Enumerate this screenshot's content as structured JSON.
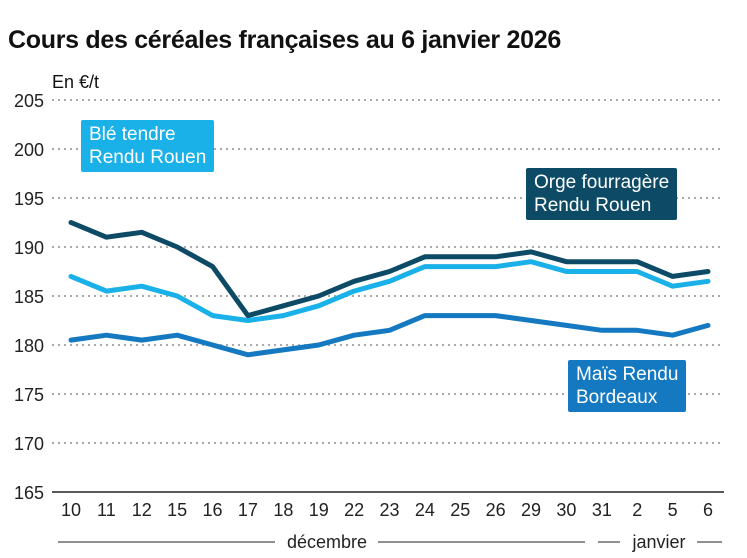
{
  "chart_data": {
    "type": "line",
    "title": "Cours des céréales françaises au 6 janvier 2026",
    "ylabel": "En €/t",
    "ylim": [
      165,
      205
    ],
    "yticks": [
      165,
      170,
      175,
      180,
      185,
      190,
      195,
      200,
      205
    ],
    "grid": true,
    "categories": [
      "10",
      "11",
      "12",
      "15",
      "16",
      "17",
      "18",
      "19",
      "22",
      "23",
      "24",
      "25",
      "26",
      "29",
      "30",
      "31",
      "2",
      "5",
      "6"
    ],
    "month_labels": [
      "décembre",
      "janvier"
    ],
    "series": [
      {
        "name": "Orge fourragère Rendu Rouen",
        "color": "#0d4a66",
        "values": [
          192.5,
          191,
          191.5,
          190,
          188,
          183,
          184,
          185,
          186.5,
          187.5,
          189,
          189,
          189,
          189.5,
          188.5,
          188.5,
          188.5,
          187,
          187.5
        ]
      },
      {
        "name": "Blé tendre Rendu Rouen",
        "color": "#1ab0e8",
        "values": [
          187,
          185.5,
          186,
          185,
          183,
          182.5,
          183,
          184,
          185.5,
          186.5,
          188,
          188,
          188,
          188.5,
          187.5,
          187.5,
          187.5,
          186,
          186.5
        ]
      },
      {
        "name": "Maïs Rendu Bordeaux",
        "color": "#1479c0",
        "values": [
          180.5,
          181,
          180.5,
          181,
          180,
          179,
          179.5,
          180,
          181,
          181.5,
          183,
          183,
          183,
          182.5,
          182,
          181.5,
          181.5,
          181,
          182
        ]
      }
    ],
    "legend_lines": [
      [
        "Blé tendre",
        "Rendu Rouen"
      ],
      [
        "Orge fourragère",
        "Rendu Rouen"
      ],
      [
        "Maïs Rendu",
        "Bordeaux"
      ]
    ]
  }
}
